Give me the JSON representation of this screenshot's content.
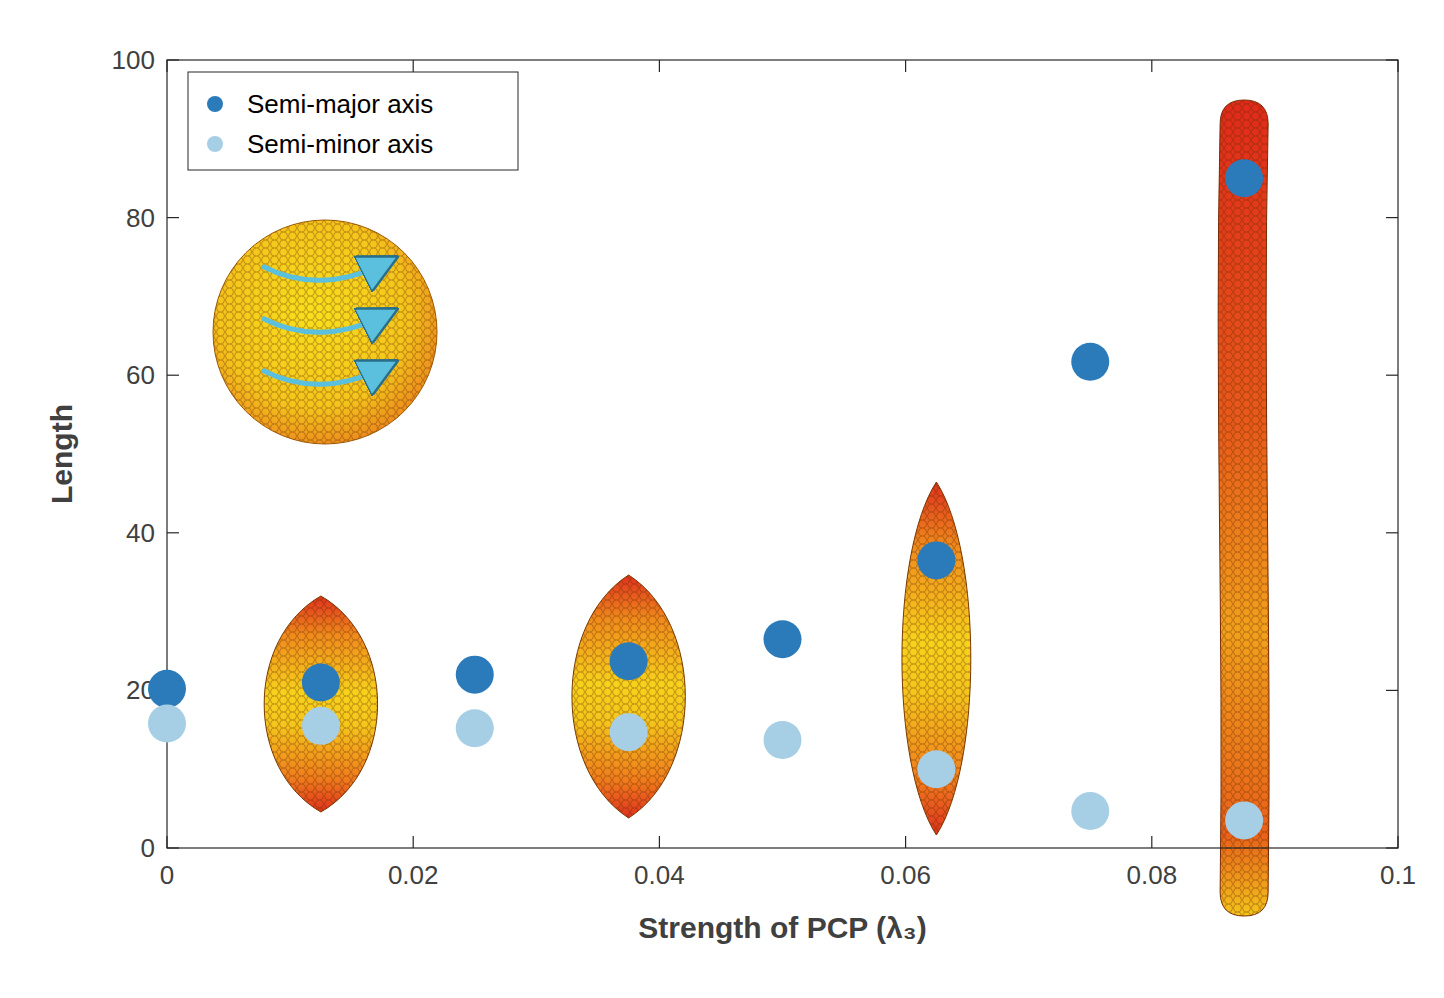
{
  "chart_data": {
    "type": "scatter",
    "x_label": "Strength of PCP (λ₃)",
    "y_label": "Length",
    "x": [
      0,
      0.0125,
      0.025,
      0.0375,
      0.05,
      0.0625,
      0.075,
      0.0875
    ],
    "series": [
      {
        "name": "Semi-major axis",
        "color": "#2b7bba",
        "marker": "circle",
        "values": [
          20.2,
          21,
          22,
          23.7,
          26.5,
          36.5,
          61.7,
          85
        ]
      },
      {
        "name": "Semi-minor axis",
        "color": "#a6cfe5",
        "marker": "circle",
        "values": [
          15.8,
          15.5,
          15.2,
          14.7,
          13.7,
          10,
          4.7,
          3.5
        ]
      }
    ],
    "xlim": [
      0,
      0.1
    ],
    "xticks": [
      0,
      0.02,
      0.04,
      0.06,
      0.08,
      0.1
    ],
    "ylim": [
      0,
      100
    ],
    "yticks": [
      0,
      20,
      40,
      60,
      80,
      100
    ],
    "grid": false,
    "legend": "upper left"
  }
}
